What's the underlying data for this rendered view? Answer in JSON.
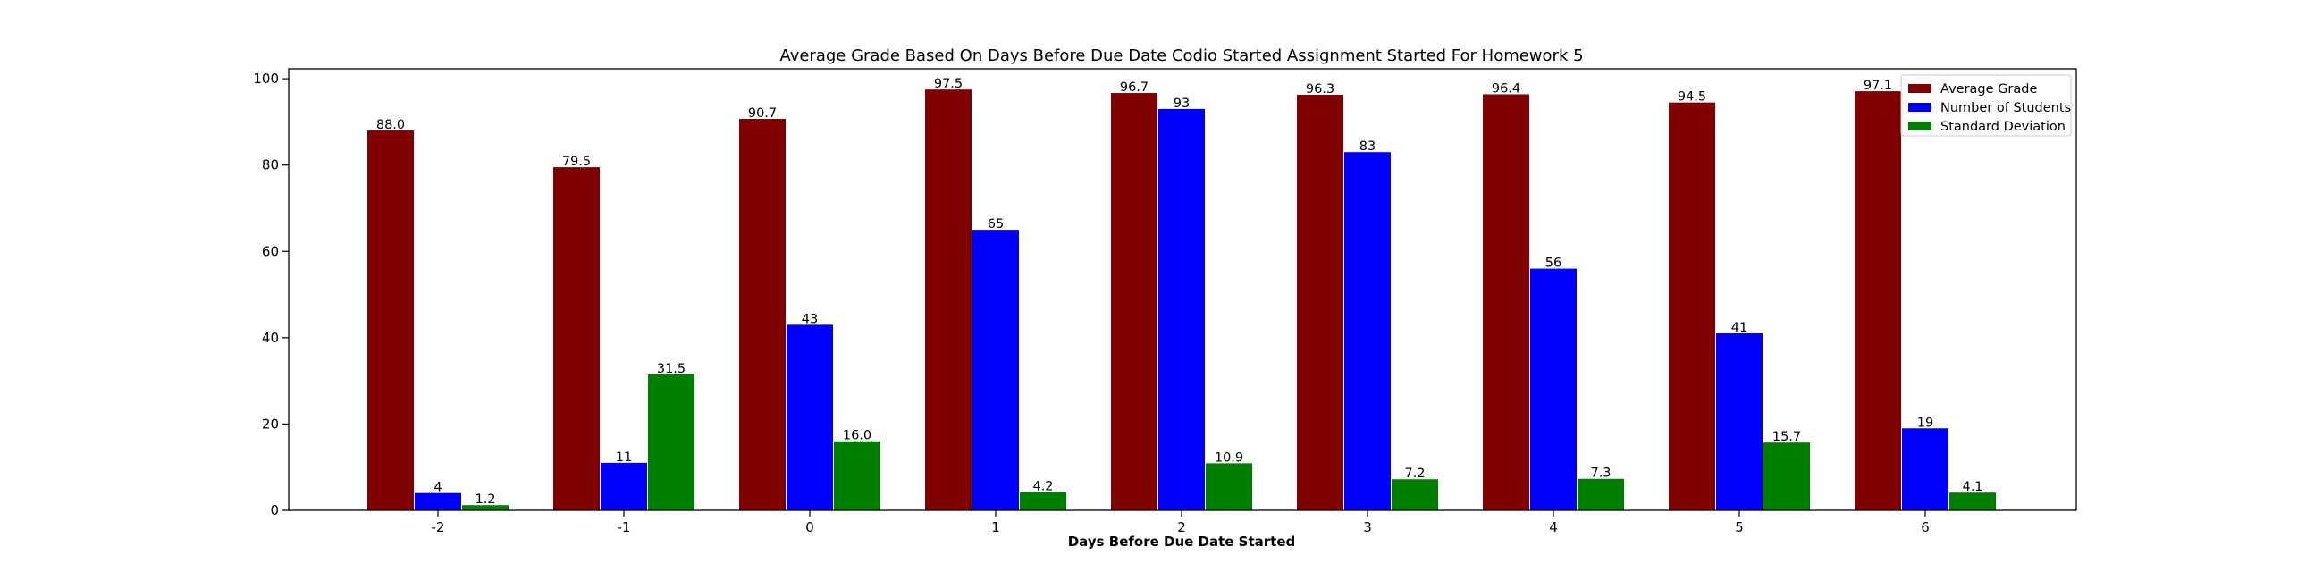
{
  "chart_data": {
    "type": "bar",
    "title": "Average Grade Based On Days Before Due Date Codio Started Assignment Started For Homework 5",
    "xlabel": "Days Before Due Date Started",
    "ylabel": "",
    "categories": [
      "-2",
      "-1",
      "0",
      "1",
      "2",
      "3",
      "4",
      "5",
      "6"
    ],
    "ylim": [
      0,
      102.3
    ],
    "yticks": [
      0,
      20,
      40,
      60,
      80,
      100
    ],
    "grid": false,
    "legend_position": "top-right",
    "series": [
      {
        "name": "Average Grade",
        "color": "#800000",
        "values": [
          88.0,
          79.5,
          90.7,
          97.5,
          96.7,
          96.3,
          96.4,
          94.5,
          97.1
        ],
        "labels": [
          "88.0",
          "79.5",
          "90.7",
          "97.5",
          "96.7",
          "96.3",
          "96.4",
          "94.5",
          "97.1"
        ]
      },
      {
        "name": "Number of Students",
        "color": "#0000ff",
        "values": [
          4,
          11,
          43,
          65,
          93,
          83,
          56,
          41,
          19
        ],
        "labels": [
          "4",
          "11",
          "43",
          "65",
          "93",
          "83",
          "56",
          "41",
          "19"
        ]
      },
      {
        "name": "Standard Deviation",
        "color": "#008000",
        "values": [
          1.2,
          31.5,
          16.0,
          4.2,
          10.9,
          7.2,
          7.3,
          15.7,
          4.1
        ],
        "labels": [
          "1.2",
          "31.5",
          "16.0",
          "4.2",
          "10.9",
          "7.2",
          "7.3",
          "15.7",
          "4.1"
        ]
      }
    ]
  }
}
